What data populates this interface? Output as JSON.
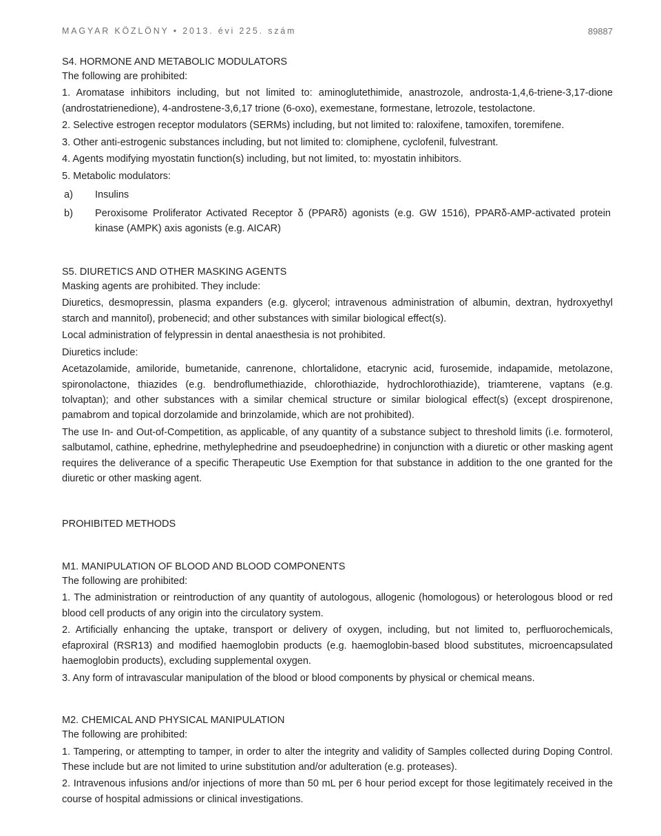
{
  "header": {
    "journal": "MAGYAR KÖZLÖNY",
    "bullet": "•",
    "issue": "2013. évi 225. szám",
    "pagenum": "89887"
  },
  "s4": {
    "title": "S4. HORMONE AND METABOLIC MODULATORS",
    "intro": "The following are prohibited:",
    "p1": "1. Aromatase inhibitors including, but not limited to: aminoglutethimide, anastrozole, androsta-1,4,6-triene-3,17-dione (androstatrienedione), 4-androstene-3,6,17 trione (6-oxo), exemestane, formestane, letrozole, testolactone.",
    "p2": "2. Selective estrogen receptor modulators (SERMs) including, but not limited to: raloxifene, tamoxifen, toremifene.",
    "p3": "3. Other anti-estrogenic substances including, but not limited to: clomiphene, cyclofenil, fulvestrant.",
    "p4": "4. Agents modifying myostatin function(s) including, but not limited, to: myostatin inhibitors.",
    "p5": "5. Metabolic modulators:",
    "a_lbl": "a)",
    "a_txt": "Insulins",
    "b_lbl": "b)",
    "b_txt": "Peroxisome Proliferator Activated Receptor δ (PPARδ) agonists (e.g. GW 1516), PPARδ-AMP-activated protein kinase (AMPK) axis agonists (e.g. AICAR)"
  },
  "s5": {
    "title": "S5. DIURETICS AND OTHER MASKING AGENTS",
    "p1": "Masking agents are prohibited. They include:",
    "p2": "Diuretics, desmopressin, plasma expanders (e.g. glycerol; intravenous administration of albumin, dextran, hydroxyethyl starch and mannitol), probenecid; and other substances with similar biological effect(s).",
    "p3": "Local administration of felypressin in dental anaesthesia is not prohibited.",
    "p4": "Diuretics include:",
    "p5": "Acetazolamide, amiloride, bumetanide, canrenone, chlortalidone, etacrynic acid, furosemide, indapamide, metolazone, spironolactone, thiazides (e.g. bendroflumethiazide, chlorothiazide, hydrochlorothiazide), triamterene, vaptans (e.g. tolvaptan); and other substances with a similar chemical structure or similar biological effect(s) (except drospirenone, pamabrom and topical dorzolamide and brinzolamide, which are not prohibited).",
    "p6": "The use In- and Out-of-Competition, as applicable, of any quantity of a substance subject to threshold limits (i.e. formoterol, salbutamol, cathine, ephedrine, methylephedrine and pseudoephedrine) in conjunction with a diuretic or other masking agent requires the deliverance of a specific Therapeutic Use Exemption for that substance in addition to the one granted for the diuretic or other masking agent."
  },
  "pm": {
    "title": "PROHIBITED METHODS"
  },
  "m1": {
    "title": "M1. MANIPULATION OF BLOOD AND BLOOD COMPONENTS",
    "intro": "The following are prohibited:",
    "p1": "1. The administration or reintroduction of any quantity of autologous, allogenic (homologous) or heterologous blood or red blood cell products of any origin into the circulatory system.",
    "p2": "2. Artificially enhancing the uptake, transport or delivery of oxygen, including, but not limited to, perfluorochemicals, efaproxiral (RSR13) and modified haemoglobin products (e.g. haemoglobin-based blood substitutes, microencapsulated haemoglobin products), excluding supplemental oxygen.",
    "p3": "3. Any form of intravascular manipulation of the blood or blood components by physical or chemical means."
  },
  "m2": {
    "title": "M2. CHEMICAL AND PHYSICAL MANIPULATION",
    "intro": "The following are prohibited:",
    "p1": "1. Tampering, or attempting to tamper, in order to alter the integrity and validity of Samples collected during Doping Control. These include but are not limited to urine substitution and/or adulteration (e.g. proteases).",
    "p2": "2. Intravenous infusions and/or injections of more than 50 mL per 6 hour period except for those legitimately received in the course of hospital admissions or clinical investigations."
  }
}
